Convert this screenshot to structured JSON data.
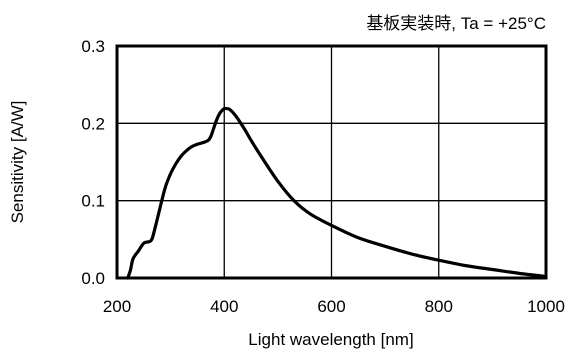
{
  "chart_data": {
    "type": "line",
    "annotation": "基板実装時, Ta = +25°C",
    "xlabel": "Light wavelength [nm]",
    "ylabel": "Sensitivity [A/W]",
    "xlim": [
      200,
      1000
    ],
    "ylim": [
      0,
      0.3
    ],
    "xticks": [
      200,
      400,
      600,
      800,
      1000
    ],
    "yticks": [
      0,
      0.1,
      0.2,
      0.3
    ],
    "xtick_labels": [
      "200",
      "400",
      "600",
      "800",
      "1000"
    ],
    "ytick_labels": [
      "0.0",
      "0.1",
      "0.2",
      "0.3"
    ],
    "grid": true,
    "line_color": "#000000",
    "series": [
      {
        "x": [
          220,
          225,
          230,
          240,
          250,
          260,
          265,
          270,
          280,
          290,
          300,
          310,
          320,
          330,
          340,
          350,
          360,
          370,
          375,
          380,
          385,
          390,
          395,
          400,
          405,
          410,
          420,
          430,
          440,
          450,
          470,
          500,
          530,
          560,
          600,
          650,
          700,
          750,
          800,
          850,
          900,
          950,
          1000
        ],
        "y": [
          0.0,
          0.01,
          0.025,
          0.035,
          0.045,
          0.047,
          0.05,
          0.062,
          0.09,
          0.117,
          0.135,
          0.148,
          0.158,
          0.165,
          0.17,
          0.173,
          0.175,
          0.178,
          0.183,
          0.193,
          0.203,
          0.211,
          0.216,
          0.219,
          0.219,
          0.218,
          0.211,
          0.201,
          0.19,
          0.178,
          0.156,
          0.125,
          0.1,
          0.083,
          0.068,
          0.052,
          0.041,
          0.031,
          0.023,
          0.016,
          0.011,
          0.006,
          0.002
        ]
      }
    ]
  }
}
